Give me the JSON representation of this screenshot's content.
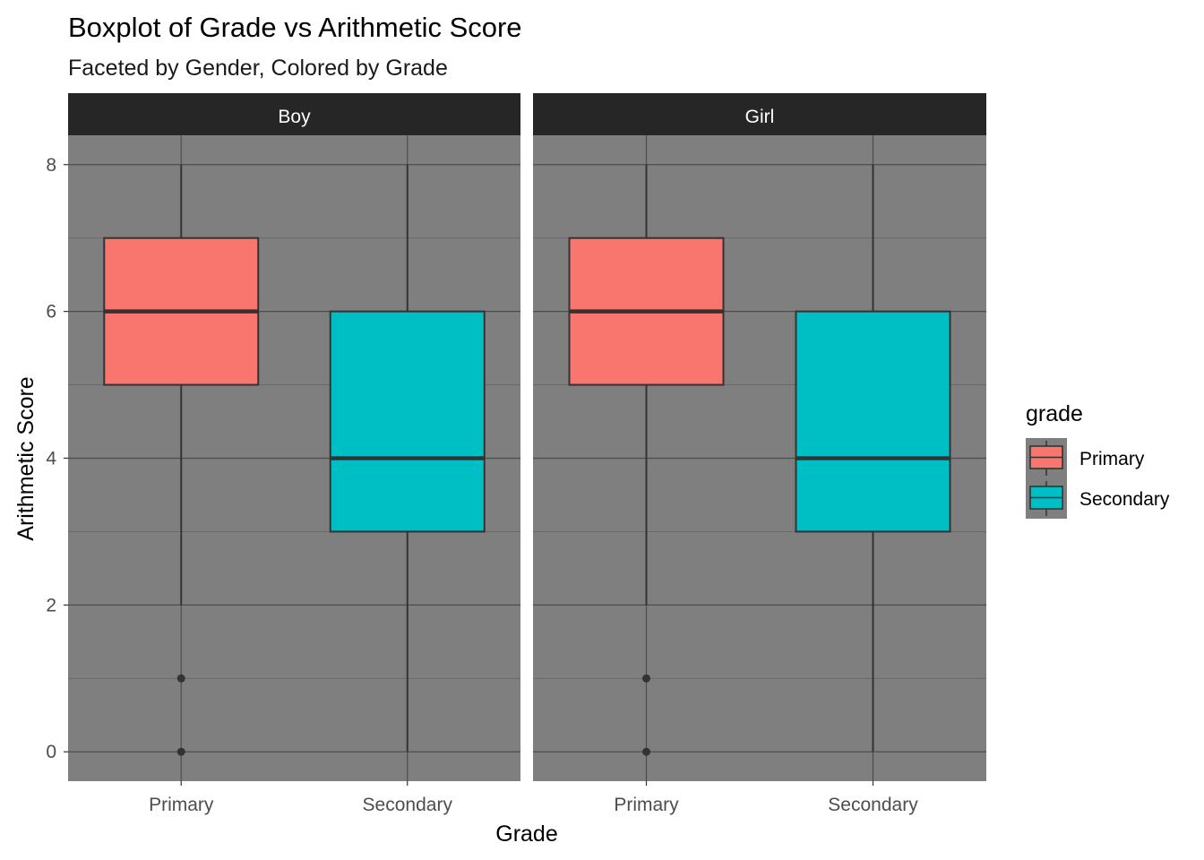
{
  "chart_data": {
    "type": "boxplot",
    "title": "Boxplot of Grade vs Arithmetic Score",
    "subtitle": "Faceted by Gender, Colored by Grade",
    "xlabel": "Grade",
    "ylabel": "Arithmetic Score",
    "categories": [
      "Primary",
      "Secondary"
    ],
    "ylim": [
      -0.4,
      8.4
    ],
    "yticks": [
      0,
      2,
      4,
      6,
      8
    ],
    "grid": true,
    "legend": {
      "title": "grade",
      "position": "right",
      "entries": [
        {
          "label": "Primary",
          "color": "#F8766D"
        },
        {
          "label": "Secondary",
          "color": "#00BFC4"
        }
      ]
    },
    "facets": [
      {
        "label": "Boy",
        "boxes": [
          {
            "category": "Primary",
            "min": 2,
            "q1": 5,
            "median": 6,
            "q3": 7,
            "max": 8,
            "outliers": [
              1,
              0
            ]
          },
          {
            "category": "Secondary",
            "min": 0,
            "q1": 3,
            "median": 4,
            "q3": 6,
            "max": 8,
            "outliers": []
          }
        ]
      },
      {
        "label": "Girl",
        "boxes": [
          {
            "category": "Primary",
            "min": 2,
            "q1": 5,
            "median": 6,
            "q3": 7,
            "max": 8,
            "outliers": [
              1,
              0
            ]
          },
          {
            "category": "Secondary",
            "min": 0,
            "q1": 3,
            "median": 4,
            "q3": 6,
            "max": 8,
            "outliers": []
          }
        ]
      }
    ],
    "colors": {
      "panel_bg": "#7F7F7F",
      "strip_bg": "#262626",
      "strip_text": "#FFFFFF",
      "grid_major": "#4D4D4D",
      "grid_minor": "#666666",
      "box_line": "#333333",
      "Primary": "#F8766D",
      "Secondary": "#00BFC4"
    }
  }
}
